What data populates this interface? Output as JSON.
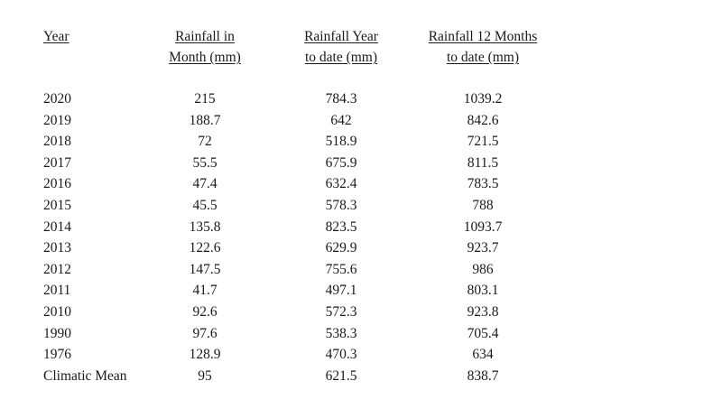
{
  "table": {
    "headers": {
      "year": "Year",
      "month": [
        "Rainfall in",
        "Month (mm)"
      ],
      "ytd": [
        "Rainfall Year",
        "to date (mm)"
      ],
      "twelve": [
        "Rainfall 12 Months",
        "to date (mm)"
      ]
    },
    "rows": [
      {
        "year": "2020",
        "month": "215",
        "ytd": "784.3",
        "twelve": "1039.2"
      },
      {
        "year": "2019",
        "month": "188.7",
        "ytd": "642",
        "twelve": "842.6"
      },
      {
        "year": "2018",
        "month": "72",
        "ytd": "518.9",
        "twelve": "721.5"
      },
      {
        "year": "2017",
        "month": "55.5",
        "ytd": "675.9",
        "twelve": "811.5"
      },
      {
        "year": "2016",
        "month": "47.4",
        "ytd": "632.4",
        "twelve": "783.5"
      },
      {
        "year": "2015",
        "month": "45.5",
        "ytd": "578.3",
        "twelve": "788"
      },
      {
        "year": "2014",
        "month": "135.8",
        "ytd": "823.5",
        "twelve": "1093.7"
      },
      {
        "year": "2013",
        "month": "122.6",
        "ytd": "629.9",
        "twelve": "923.7"
      },
      {
        "year": "2012",
        "month": "147.5",
        "ytd": "755.6",
        "twelve": "986"
      },
      {
        "year": "2011",
        "month": "41.7",
        "ytd": "497.1",
        "twelve": "803.1"
      },
      {
        "year": "2010",
        "month": "92.6",
        "ytd": "572.3",
        "twelve": "923.8"
      },
      {
        "year": "1990",
        "month": "97.6",
        "ytd": "538.3",
        "twelve": "705.4"
      },
      {
        "year": "1976",
        "month": "128.9",
        "ytd": "470.3",
        "twelve": "634"
      },
      {
        "year": "Climatic Mean",
        "month": "95",
        "ytd": "621.5",
        "twelve": "838.7"
      }
    ]
  }
}
